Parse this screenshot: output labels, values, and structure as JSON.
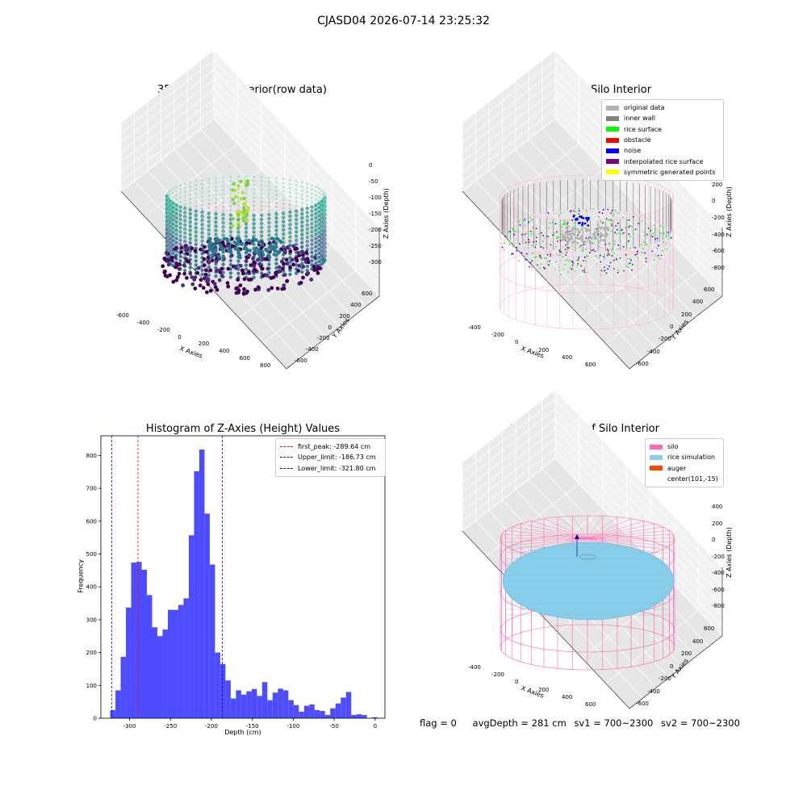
{
  "figure": {
    "title": "CJASD04 2026-07-14 23:25:32"
  },
  "plots": {
    "p1": {
      "title": "3D Plot of Silo Interior(row data)",
      "xlabel": "X Axies",
      "ylabel": "Y Axies",
      "zlabel": "Z Axies (Depth)",
      "xticks": [
        "-600",
        "-400",
        "-200",
        "0",
        "200",
        "400",
        "600",
        "800"
      ],
      "yticks": [
        "600",
        "400",
        "200",
        "0",
        "-200",
        "-400",
        "-600"
      ],
      "zticks": [
        "0",
        "-50",
        "-100",
        "-150",
        "-200",
        "-250",
        "-300"
      ]
    },
    "p2": {
      "title": "3D classify of Silo Interior",
      "xlabel": "X Axies",
      "ylabel": "Y Axies",
      "zlabel": "Z Axies (Depth)",
      "xticks": [
        "-400",
        "-200",
        "0",
        "200",
        "400",
        "600"
      ],
      "yticks": [
        "600",
        "400",
        "200",
        "0",
        "-200",
        "-400",
        "-600"
      ],
      "zticks": [
        "400",
        "200",
        "0",
        "-200",
        "-400",
        "-600",
        "-800"
      ],
      "legend": [
        {
          "label": "original data",
          "color": "#b3b3b3"
        },
        {
          "label": "inner wall",
          "color": "#808080"
        },
        {
          "label": "rice surface",
          "color": "#00ff00"
        },
        {
          "label": "obstacle",
          "color": "#ff0000"
        },
        {
          "label": "noise",
          "color": "#0000ff"
        },
        {
          "label": "interpolated rice surface",
          "color": "#800080"
        },
        {
          "label": "symmetric generated points",
          "color": "#ffff00"
        }
      ]
    },
    "p4": {
      "title": "3D simulation of Silo Interior",
      "xlabel": "X Axies",
      "ylabel": "Y Axies",
      "zlabel": "Z Axies (Depth)",
      "xticks": [
        "-400",
        "-200",
        "0",
        "200",
        "400",
        "600"
      ],
      "yticks": [
        "600",
        "400",
        "200",
        "0",
        "-200",
        "-400",
        "-600"
      ],
      "zticks": [
        "400",
        "200",
        "0",
        "-200",
        "-400",
        "-600",
        "-800"
      ],
      "legend": [
        {
          "label": "silo",
          "color": "#ff69b4"
        },
        {
          "label": "rice simulation",
          "color": "#87ceeb"
        },
        {
          "label": "auger",
          "color": "#ff4500"
        },
        {
          "label": "center(101,-15)",
          "color": ""
        }
      ]
    }
  },
  "chart_data": {
    "type": "bar",
    "title": "Histogram of Z-Axies (Height) Values",
    "xlabel": "Depth (cm)",
    "ylabel": "Frequency",
    "xlim": [
      -335,
      12
    ],
    "ylim": [
      0,
      860
    ],
    "xticks": [
      -300,
      -250,
      -200,
      -150,
      -100,
      -50,
      0
    ],
    "yticks": [
      0,
      100,
      200,
      300,
      400,
      500,
      600,
      700,
      800
    ],
    "bar_color": "#4d4dff",
    "bin_left": -323.6,
    "bin_width": 6.4,
    "values": [
      25,
      85,
      187,
      337,
      474,
      476,
      452,
      375,
      277,
      250,
      270,
      330,
      330,
      345,
      365,
      557,
      752,
      818,
      623,
      468,
      200,
      165,
      115,
      60,
      85,
      72,
      82,
      89,
      68,
      110,
      55,
      78,
      90,
      85,
      55,
      40,
      20,
      38,
      42,
      25,
      22,
      10,
      30,
      45,
      63,
      80,
      10,
      12,
      10,
      0,
      3
    ],
    "vlines": [
      {
        "label": "first_peak: -289.64 cm",
        "x": -289.64,
        "color": "#ff0000"
      },
      {
        "label": "Upper_limit: -186.73 cm",
        "x": -186.73,
        "color": "#0000ff"
      },
      {
        "label": "Lower_limit: -321.80 cm",
        "x": -321.8,
        "color": "#0000ff"
      }
    ],
    "legend_position": "top-right"
  },
  "footer": {
    "flag": "flag = 0",
    "avg": "avgDepth = 281 cm",
    "sv1": "sv1 = 700~2300",
    "sv2": "sv2 = 700~2300"
  }
}
